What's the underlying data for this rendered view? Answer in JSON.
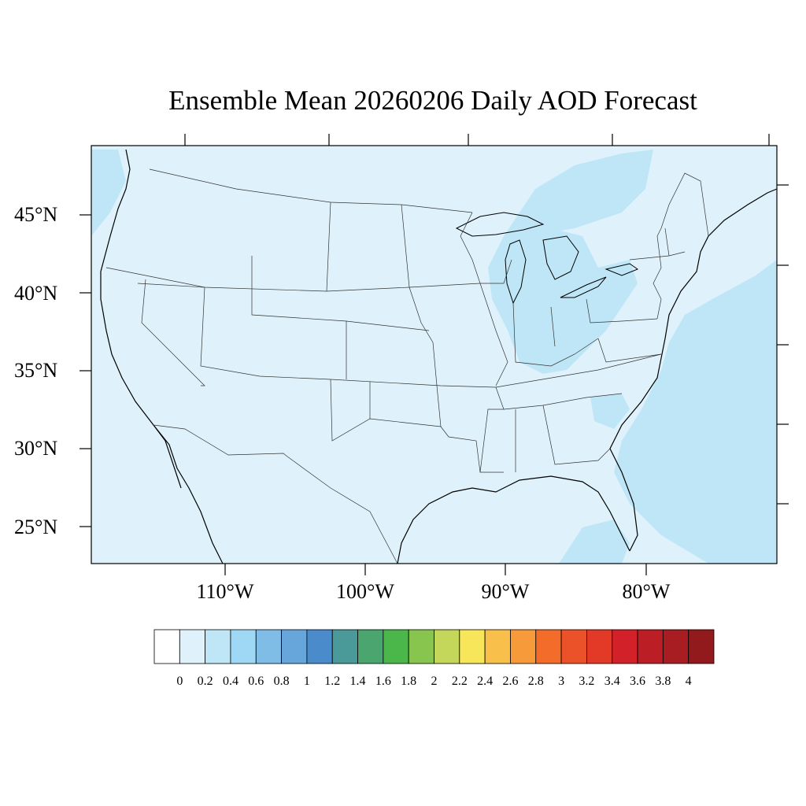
{
  "title": "Ensemble Mean 20260206 Daily AOD Forecast",
  "map": {
    "lat_labels": [
      "45°N",
      "40°N",
      "35°N",
      "30°N",
      "25°N"
    ],
    "lon_labels": [
      "110°W",
      "100°W",
      "90°W",
      "80°W"
    ],
    "background_fill": "#dff2fb",
    "elevated_fill": "#bfe6f7",
    "coastline_color": "#000000",
    "border_color": "#333333"
  },
  "colorbar": {
    "colors": [
      "#ffffff",
      "#dff2fb",
      "#bfe6f7",
      "#9fd8f5",
      "#7fbde6",
      "#66a6da",
      "#4a8ccb",
      "#4a9a9a",
      "#4aa56f",
      "#4bb649",
      "#87c54f",
      "#c4d75a",
      "#f7e65a",
      "#f8c04a",
      "#f79a3a",
      "#f36c2a",
      "#ec5229",
      "#e23a26",
      "#d22128",
      "#bc1e25",
      "#a71d22",
      "#921a1d"
    ],
    "labels": [
      "0",
      "0.2",
      "0.4",
      "0.6",
      "0.8",
      "1",
      "1.2",
      "1.4",
      "1.6",
      "1.8",
      "2",
      "2.2",
      "2.4",
      "2.6",
      "2.8",
      "3",
      "3.2",
      "3.4",
      "3.6",
      "3.8",
      "4"
    ]
  }
}
